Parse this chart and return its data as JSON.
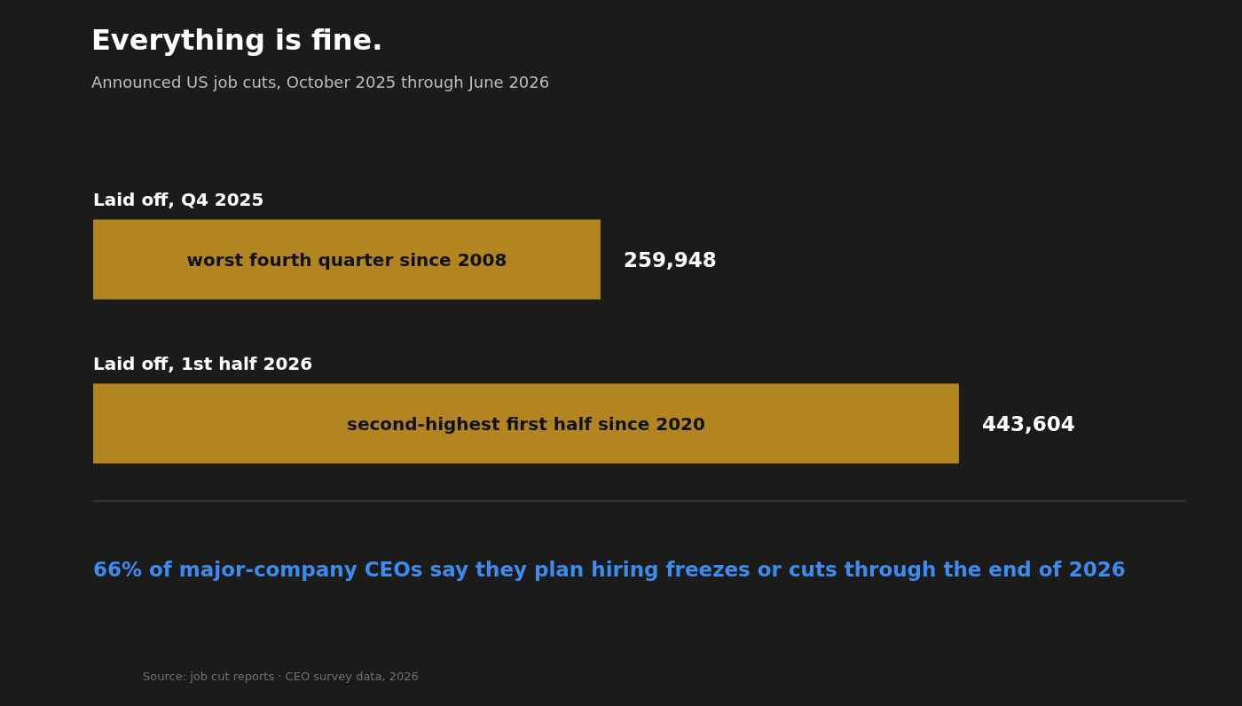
{
  "chart_data": {
    "type": "bar",
    "orientation": "horizontal",
    "title": "Everything is fine.",
    "subtitle": "Announced US job cuts, October 2025 through June 2026",
    "categories": [
      "Laid off, Q4 2025",
      "Laid off, 1st half 2026"
    ],
    "values": [
      259948,
      443604
    ],
    "color": "#b38520",
    "value_labels": [
      "259,948",
      "443,604"
    ],
    "annotations": [
      "worst fourth quarter since 2008",
      "second-highest first half since 2020",
      "66% of major-company CEOs say they plan hiring freezes or cuts through the end of 2026",
      "Source: job cut reports · CEO survey data, 2026"
    ]
  }
}
